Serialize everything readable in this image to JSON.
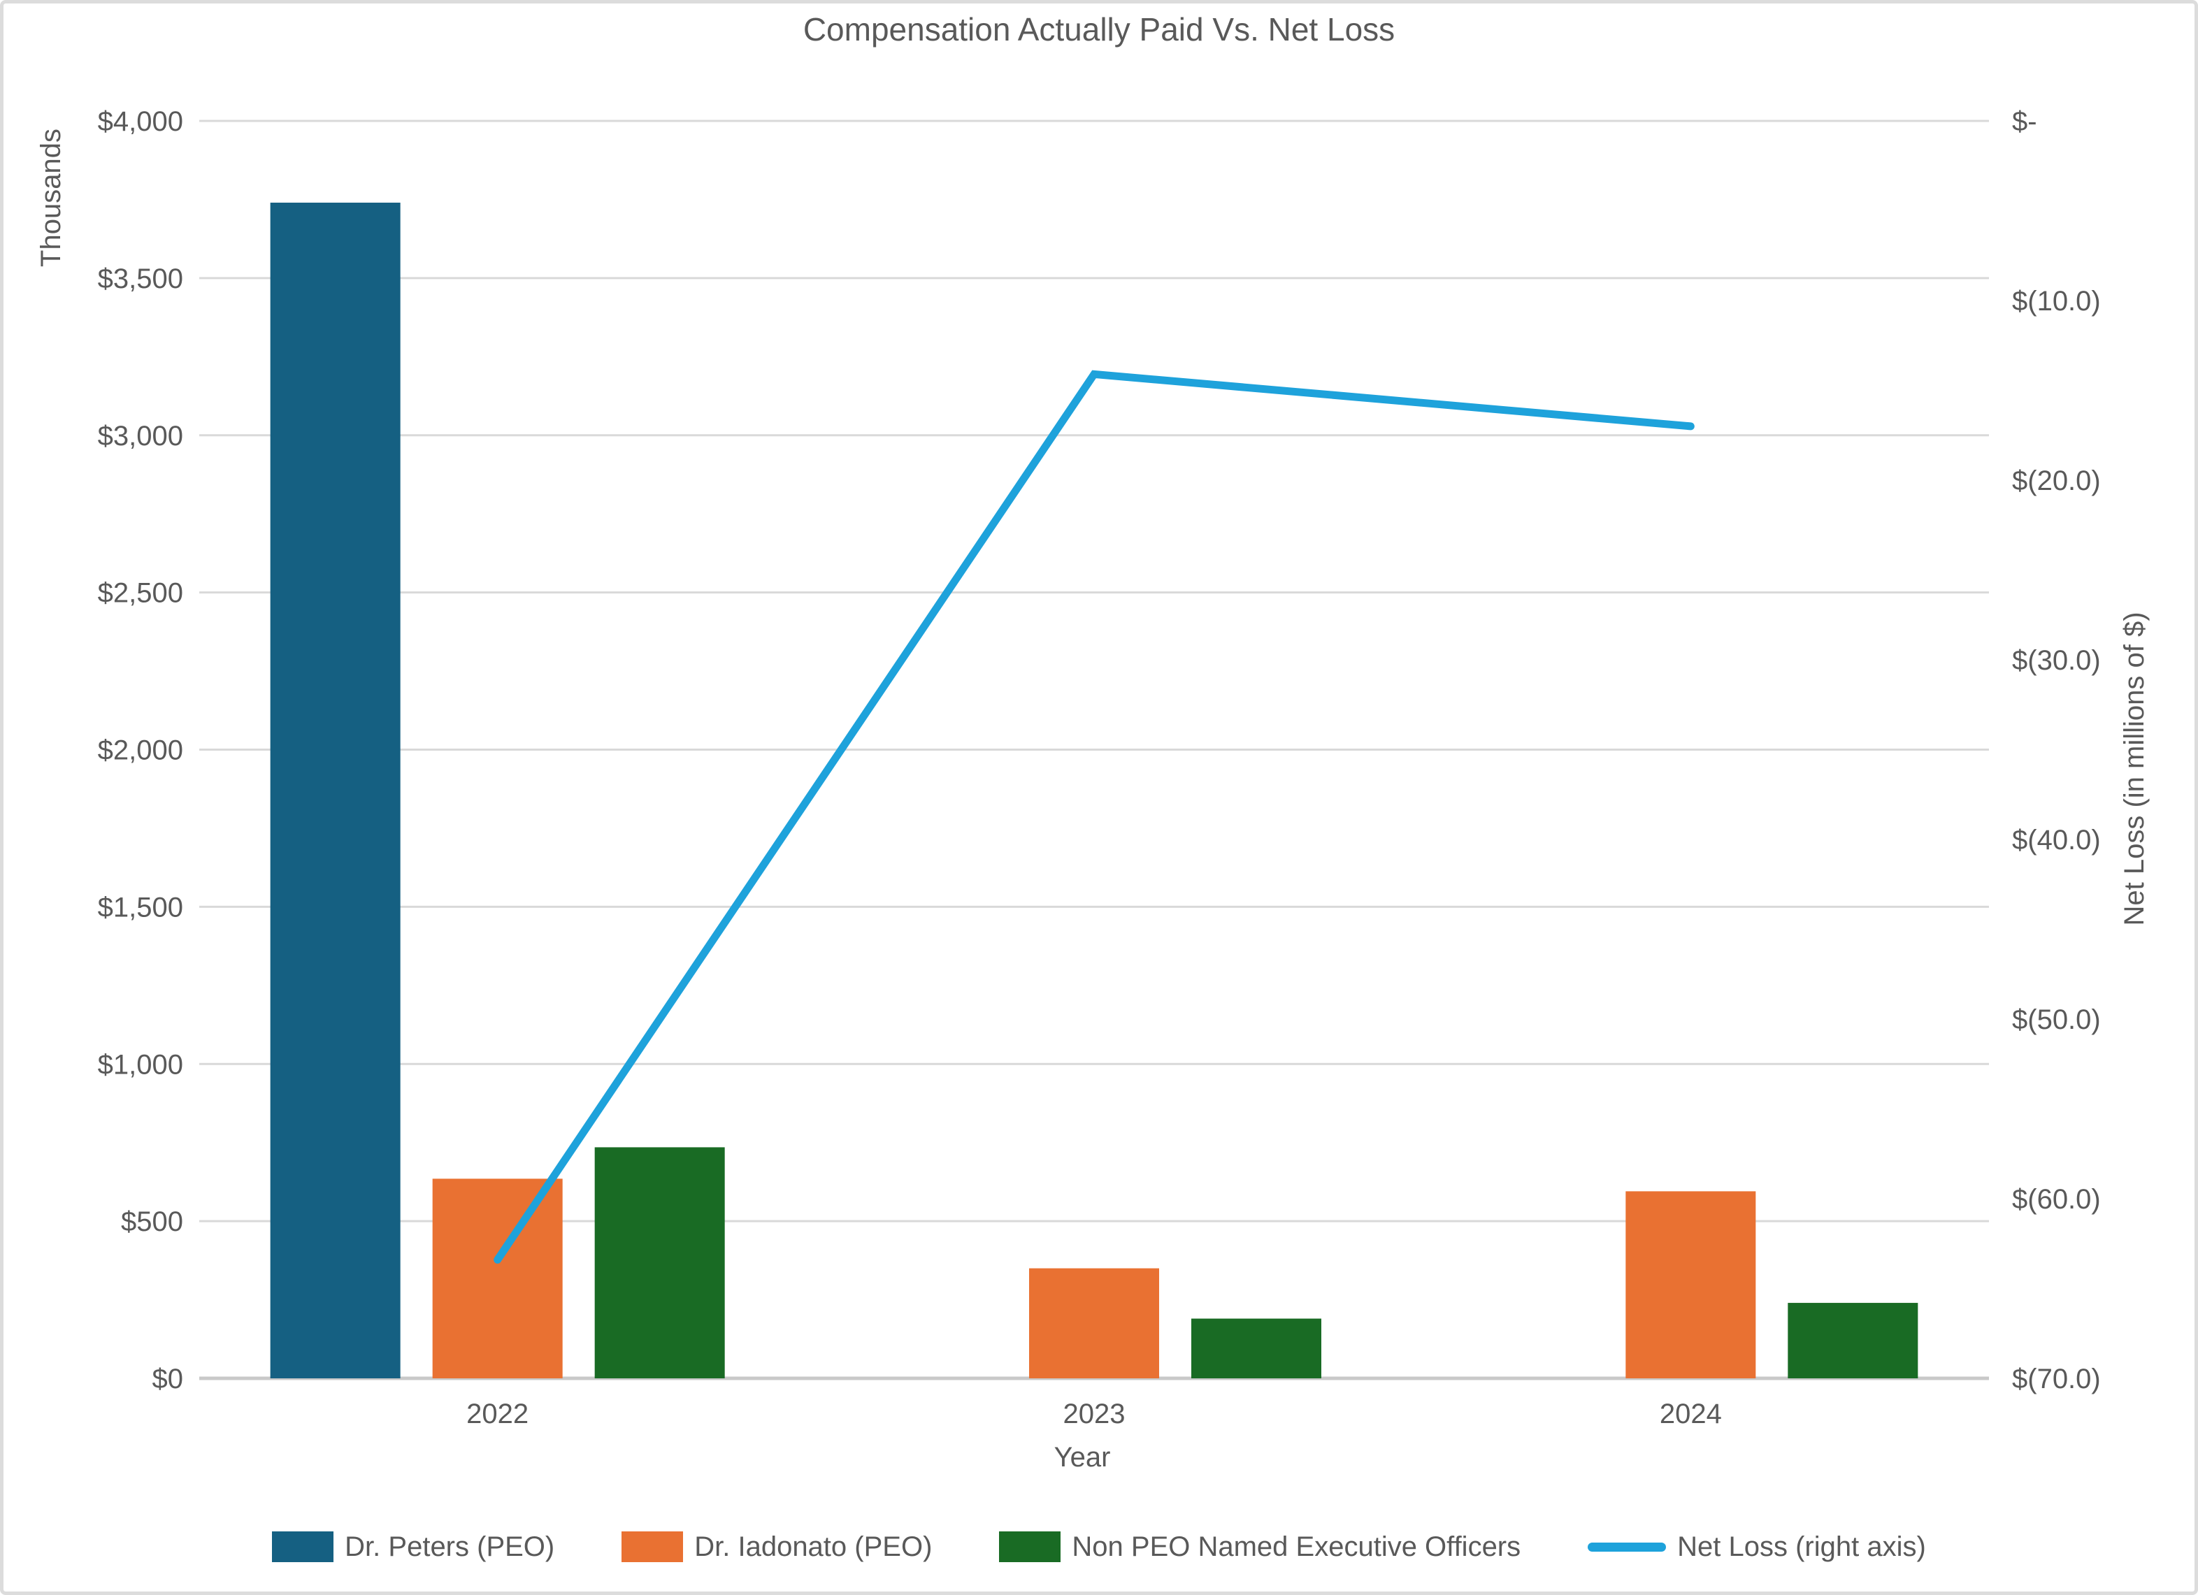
{
  "title": "Compensation Actually Paid Vs. Net Loss",
  "page": {
    "background": "#FFFFFF",
    "border_color": "#DCDCDC",
    "text_color": "#595959",
    "gridline_color": "#D9D9D9",
    "axis_line_color": "#C9C9C9"
  },
  "chart_data": {
    "type": "bar",
    "subtype": "combo-bar-line-dual-axis",
    "categories": [
      "2022",
      "2023",
      "2024"
    ],
    "series": [
      {
        "name": "Dr. Peters (PEO)",
        "kind": "bar",
        "axis": "left",
        "color": "#156082",
        "values": [
          3740,
          0,
          0
        ]
      },
      {
        "name": "Dr. Iadonato (PEO)",
        "kind": "bar",
        "axis": "left",
        "color": "#E97132",
        "values": [
          635,
          350,
          595
        ]
      },
      {
        "name": "Non PEO Named Executive Officers",
        "kind": "bar",
        "axis": "left",
        "color": "#196B24",
        "values": [
          735,
          190,
          240
        ]
      },
      {
        "name": "Net Loss (right axis)",
        "kind": "line",
        "axis": "right",
        "color": "#1EA2DB",
        "values": [
          -63.4,
          -14.1,
          -17.0
        ]
      }
    ],
    "left_axis": {
      "label": "Thousands",
      "min": 0,
      "max": 4000,
      "step": 500,
      "ticks": [
        "$4,000",
        "$3,500",
        "$3,000",
        "$2,500",
        "$2,000",
        "$1,500",
        "$1,000",
        "$500",
        "$0"
      ]
    },
    "right_axis": {
      "label": "Net Loss (in millions of $)",
      "min": -70,
      "max": 0,
      "step": 10,
      "ticks": [
        "$-",
        "$(10.0)",
        "$(20.0)",
        "$(30.0)",
        "$(40.0)",
        "$(50.0)",
        "$(60.0)",
        "$(70.0)"
      ]
    },
    "x_axis": {
      "label": "Year"
    },
    "grid": true,
    "legend_position": "bottom"
  }
}
